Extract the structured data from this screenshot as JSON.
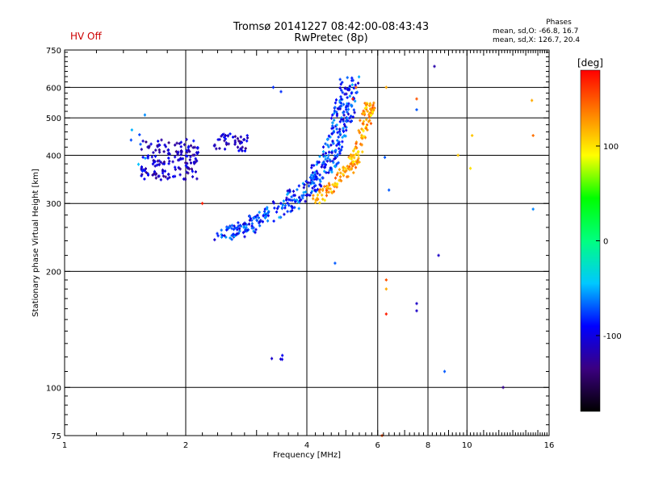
{
  "header": {
    "title_line1": "Tromsø 20141227 08:42:00-08:43:43",
    "title_line2": "RwPretec (8p)",
    "hv_status": "HV Off",
    "stats_heading": "Phases",
    "stats_o": "mean, sd,O: -66.8, 16.7",
    "stats_x": "mean, sd,X: 126.7, 20.4"
  },
  "colorbar": {
    "label": "[deg]",
    "ticks": [
      {
        "value": 100,
        "label": "100"
      },
      {
        "value": 0,
        "label": "0"
      },
      {
        "value": -100,
        "label": "-100"
      }
    ],
    "range": [
      -180,
      180
    ],
    "colors": [
      "#000000",
      "#3b0080",
      "#0000ff",
      "#00c8ff",
      "#00ff80",
      "#00ff00",
      "#ffff00",
      "#ff8000",
      "#ff0000"
    ]
  },
  "chart_data": {
    "type": "scatter",
    "title": "Tromsø 20141227 08:42:00-08:43:43",
    "subtitle": "RwPretec (8p)",
    "xlabel": "Frequency [MHz]",
    "ylabel": "Stationary phase Virtual Height [km]",
    "x_scale": "log",
    "y_scale": "log",
    "xlim": [
      1,
      16
    ],
    "ylim": [
      75,
      750
    ],
    "x_ticks": [
      {
        "value": 1,
        "label": "1"
      },
      {
        "value": 2,
        "label": "2"
      },
      {
        "value": 4,
        "label": "4"
      },
      {
        "value": 6,
        "label": "6"
      },
      {
        "value": 8,
        "label": "8"
      },
      {
        "value": 10,
        "label": "10"
      },
      {
        "value": 16,
        "label": "16"
      }
    ],
    "y_ticks": [
      {
        "value": 75,
        "label": "75"
      },
      {
        "value": 100,
        "label": "100"
      },
      {
        "value": 200,
        "label": "200"
      },
      {
        "value": 300,
        "label": "300"
      },
      {
        "value": 400,
        "label": "400"
      },
      {
        "value": 500,
        "label": "500"
      },
      {
        "value": 600,
        "label": "600"
      },
      {
        "value": 750,
        "label": "750"
      }
    ],
    "x_grid": [
      2,
      4,
      6,
      8,
      10
    ],
    "y_grid": [
      100,
      200,
      300,
      400,
      500,
      600
    ],
    "grid": true,
    "color_quantity": "phase [deg]",
    "clusters": [
      {
        "x_range": [
          1.55,
          2.15
        ],
        "y_range": [
          345,
          440
        ],
        "phase": -110,
        "n": 160
      },
      {
        "x_range": [
          2.35,
          2.85
        ],
        "y_range": [
          410,
          455
        ],
        "phase": -110,
        "n": 45
      },
      {
        "x_range": [
          1.45,
          1.6
        ],
        "y_range": [
          355,
          530
        ],
        "phase": -70,
        "n": 8
      },
      {
        "x_range": [
          3.15,
          3.5
        ],
        "y_range": [
          118,
          122
        ],
        "phase": -110,
        "n": 4
      }
    ],
    "o_trace": {
      "phase": -80,
      "n": 420,
      "points": [
        [
          2.5,
          250
        ],
        [
          2.8,
          258
        ],
        [
          3.0,
          270
        ],
        [
          3.3,
          285
        ],
        [
          3.6,
          300
        ],
        [
          3.9,
          320
        ],
        [
          4.2,
          345
        ],
        [
          4.4,
          370
        ],
        [
          4.6,
          400
        ],
        [
          4.75,
          440
        ],
        [
          4.85,
          480
        ],
        [
          4.95,
          530
        ],
        [
          5.05,
          580
        ],
        [
          5.1,
          630
        ]
      ]
    },
    "x_trace": {
      "phase": 120,
      "n": 170,
      "points": [
        [
          4.2,
          305
        ],
        [
          4.5,
          325
        ],
        [
          4.8,
          345
        ],
        [
          5.0,
          365
        ],
        [
          5.2,
          380
        ],
        [
          5.35,
          410
        ],
        [
          5.5,
          450
        ],
        [
          5.6,
          490
        ],
        [
          5.7,
          520
        ],
        [
          5.75,
          540
        ]
      ]
    },
    "scattered_points": [
      {
        "x": 6.3,
        "y": 600,
        "phase": 120
      },
      {
        "x": 6.25,
        "y": 395,
        "phase": -70
      },
      {
        "x": 6.4,
        "y": 325,
        "phase": -70
      },
      {
        "x": 6.3,
        "y": 190,
        "phase": 150
      },
      {
        "x": 6.3,
        "y": 180,
        "phase": 120
      },
      {
        "x": 6.3,
        "y": 155,
        "phase": 170
      },
      {
        "x": 7.5,
        "y": 560,
        "phase": 150
      },
      {
        "x": 7.5,
        "y": 525,
        "phase": -70
      },
      {
        "x": 7.5,
        "y": 165,
        "phase": -110
      },
      {
        "x": 7.5,
        "y": 158,
        "phase": -110
      },
      {
        "x": 8.3,
        "y": 680,
        "phase": -120
      },
      {
        "x": 8.5,
        "y": 220,
        "phase": -110
      },
      {
        "x": 8.8,
        "y": 110,
        "phase": -70
      },
      {
        "x": 10.3,
        "y": 450,
        "phase": 110
      },
      {
        "x": 10.2,
        "y": 370,
        "phase": 100
      },
      {
        "x": 12.3,
        "y": 100,
        "phase": -130
      },
      {
        "x": 14.5,
        "y": 555,
        "phase": 120
      },
      {
        "x": 14.6,
        "y": 450,
        "phase": 140
      },
      {
        "x": 14.6,
        "y": 290,
        "phase": -60
      },
      {
        "x": 9.5,
        "y": 400,
        "phase": 110
      },
      {
        "x": 5.3,
        "y": 600,
        "phase": 150
      },
      {
        "x": 5.2,
        "y": 560,
        "phase": 170
      },
      {
        "x": 6.15,
        "y": 75,
        "phase": 150
      },
      {
        "x": 4.7,
        "y": 210,
        "phase": -70
      },
      {
        "x": 3.3,
        "y": 600,
        "phase": -80
      },
      {
        "x": 3.45,
        "y": 585,
        "phase": -80
      },
      {
        "x": 2.2,
        "y": 300,
        "phase": 170
      }
    ]
  }
}
